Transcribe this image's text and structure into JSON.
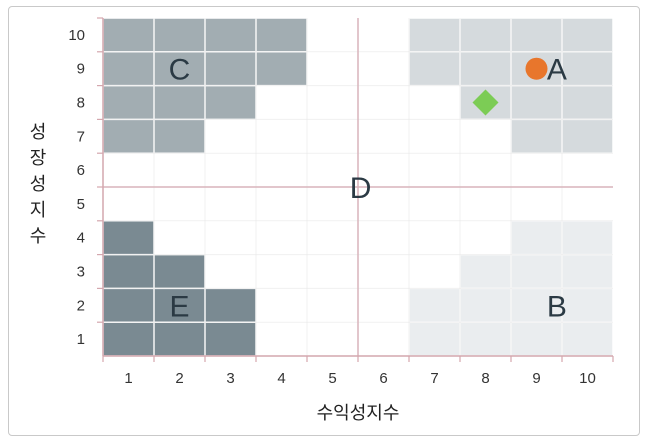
{
  "chart_data": {
    "type": "scatter",
    "title": "",
    "xlabel": "수익성지수",
    "ylabel": "성장성지수",
    "xticks": [
      "1",
      "2",
      "3",
      "4",
      "5",
      "6",
      "7",
      "8",
      "9",
      "10"
    ],
    "yticks": [
      "1",
      "2",
      "3",
      "4",
      "5",
      "6",
      "7",
      "8",
      "9",
      "10"
    ],
    "xlim": [
      0.5,
      10.5
    ],
    "ylim": [
      0.5,
      10.5
    ],
    "grid": true,
    "divider": {
      "x": 5.5,
      "y": 5.5
    },
    "zones": [
      {
        "label": "C",
        "color": "#a2adb2",
        "label_at": {
          "x": 2,
          "y": 9
        },
        "cells": [
          [
            1,
            10
          ],
          [
            2,
            10
          ],
          [
            3,
            10
          ],
          [
            4,
            10
          ],
          [
            1,
            9
          ],
          [
            2,
            9
          ],
          [
            3,
            9
          ],
          [
            4,
            9
          ],
          [
            1,
            8
          ],
          [
            2,
            8
          ],
          [
            3,
            8
          ],
          [
            1,
            7
          ],
          [
            2,
            7
          ]
        ]
      },
      {
        "label": "A",
        "color": "#d5dadd",
        "label_at": {
          "x": 9.4,
          "y": 9
        },
        "cells": [
          [
            7,
            10
          ],
          [
            8,
            10
          ],
          [
            9,
            10
          ],
          [
            10,
            10
          ],
          [
            7,
            9
          ],
          [
            8,
            9
          ],
          [
            9,
            9
          ],
          [
            10,
            9
          ],
          [
            8,
            8
          ],
          [
            9,
            8
          ],
          [
            10,
            8
          ],
          [
            9,
            7
          ],
          [
            10,
            7
          ]
        ]
      },
      {
        "label": "E",
        "color": "#7a8a92",
        "label_at": {
          "x": 2,
          "y": 2
        },
        "cells": [
          [
            1,
            4
          ],
          [
            1,
            3
          ],
          [
            2,
            3
          ],
          [
            1,
            2
          ],
          [
            2,
            2
          ],
          [
            3,
            2
          ],
          [
            1,
            1
          ],
          [
            2,
            1
          ],
          [
            3,
            1
          ]
        ]
      },
      {
        "label": "B",
        "color": "#eaedef",
        "label_at": {
          "x": 9.4,
          "y": 2
        },
        "cells": [
          [
            9,
            4
          ],
          [
            10,
            4
          ],
          [
            8,
            3
          ],
          [
            9,
            3
          ],
          [
            10,
            3
          ],
          [
            7,
            2
          ],
          [
            8,
            2
          ],
          [
            9,
            2
          ],
          [
            10,
            2
          ],
          [
            7,
            1
          ],
          [
            8,
            1
          ],
          [
            9,
            1
          ],
          [
            10,
            1
          ]
        ]
      }
    ],
    "center_label": {
      "label": "D",
      "x": 5.55,
      "y": 5.5
    },
    "points": [
      {
        "x": 9.0,
        "y": 9.0,
        "shape": "circle",
        "color": "#e8762c"
      },
      {
        "x": 8.0,
        "y": 8.0,
        "shape": "diamond",
        "color": "#7ccc55"
      }
    ]
  }
}
